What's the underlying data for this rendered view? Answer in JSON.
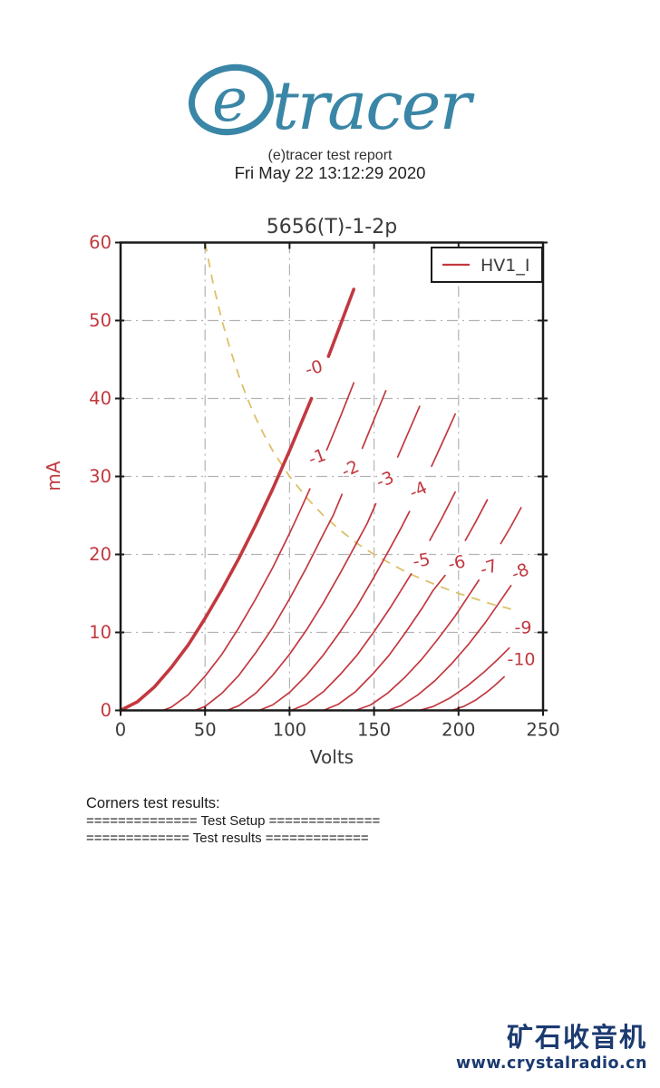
{
  "logo": {
    "mark": "e",
    "name": "tracer",
    "color": "#3a86a6"
  },
  "header": {
    "report_title": "(e)tracer test report",
    "timestamp": "Fri May 22 13:12:29 2020"
  },
  "chart_data": {
    "type": "line",
    "title": "5656(T)-1-2p",
    "xlabel": "Volts",
    "ylabel": "mA",
    "xlim": [
      0,
      250
    ],
    "ylim": [
      0,
      60
    ],
    "xticks": [
      0,
      50,
      100,
      150,
      200,
      250
    ],
    "yticks": [
      0,
      10,
      20,
      30,
      40,
      50,
      60
    ],
    "grid": true,
    "legend": {
      "label": "HV1_I",
      "position": "top-right"
    },
    "colors": {
      "curve": "#c2383f",
      "power": "#dcc06a",
      "grid": "#b3b3b3",
      "axis": "#1a1a1a",
      "title": "#3a3a3a",
      "xtick": "#3a3a3a",
      "ytick": "#c2383f"
    },
    "series": [
      {
        "name": "-0",
        "bold": true,
        "label_pos": [
          115.3,
          43.9
        ],
        "label_rot": -15,
        "segments": [
          [
            [
              0,
              0
            ],
            [
              10,
              1.1
            ],
            [
              20,
              3.0
            ],
            [
              30,
              5.5
            ],
            [
              40,
              8.4
            ],
            [
              50,
              11.8
            ],
            [
              60,
              15.5
            ],
            [
              70,
              19.5
            ],
            [
              80,
              23.8
            ],
            [
              90,
              28.4
            ],
            [
              100,
              33.3
            ],
            [
              107,
              36.9
            ],
            [
              113,
              40.0
            ]
          ],
          [
            [
              123,
              45.4
            ],
            [
              130,
              49.4
            ],
            [
              138,
              54
            ]
          ]
        ]
      },
      {
        "name": "-1",
        "bold": false,
        "label_pos": [
          117.5,
          32.5
        ],
        "label_rot": -20,
        "segments": [
          [
            [
              0,
              0
            ],
            [
              25,
              0
            ],
            [
              30,
              0.4
            ],
            [
              40,
              2.0
            ],
            [
              50,
              4.4
            ],
            [
              60,
              7.2
            ],
            [
              70,
              10.6
            ],
            [
              80,
              14.3
            ],
            [
              90,
              18.3
            ],
            [
              100,
              22.7
            ],
            [
              106,
              25.5
            ],
            [
              112,
              28.4
            ]
          ],
          [
            [
              122,
              33.4
            ],
            [
              130,
              37.6
            ],
            [
              138,
              42
            ]
          ]
        ]
      },
      {
        "name": "-2",
        "bold": false,
        "label_pos": [
          137.3,
          31.0
        ],
        "label_rot": -25,
        "segments": [
          [
            [
              0,
              0
            ],
            [
              44,
              0
            ],
            [
              50,
              0.5
            ],
            [
              60,
              2.2
            ],
            [
              70,
              4.5
            ],
            [
              80,
              7.4
            ],
            [
              90,
              10.6
            ],
            [
              100,
              14.3
            ],
            [
              110,
              18.3
            ],
            [
              120,
              22.6
            ],
            [
              126,
              25.1
            ],
            [
              131,
              27.7
            ]
          ],
          [
            [
              143,
              33.6
            ],
            [
              150,
              37.3
            ],
            [
              157,
              41
            ]
          ]
        ]
      },
      {
        "name": "-3",
        "bold": false,
        "label_pos": [
          157.7,
          29.6
        ],
        "label_rot": -22,
        "segments": [
          [
            [
              0,
              0
            ],
            [
              63,
              0
            ],
            [
              70,
              0.6
            ],
            [
              80,
              2.2
            ],
            [
              90,
              4.5
            ],
            [
              100,
              7.2
            ],
            [
              110,
              10.3
            ],
            [
              120,
              13.8
            ],
            [
              130,
              17.6
            ],
            [
              140,
              21.6
            ],
            [
              146,
              24.0
            ],
            [
              151,
              26.5
            ]
          ],
          [
            [
              164,
              32.5
            ],
            [
              170,
              35.5
            ],
            [
              177,
              39
            ]
          ]
        ]
      },
      {
        "name": "-4",
        "bold": false,
        "label_pos": [
          177.6,
          28.3
        ],
        "label_rot": -25,
        "segments": [
          [
            [
              0,
              0
            ],
            [
              82,
              0
            ],
            [
              90,
              0.7
            ],
            [
              100,
              2.3
            ],
            [
              110,
              4.5
            ],
            [
              120,
              7.1
            ],
            [
              130,
              10.1
            ],
            [
              140,
              13.4
            ],
            [
              150,
              17.1
            ],
            [
              160,
              21.0
            ],
            [
              166,
              23.4
            ],
            [
              171,
              25.5
            ]
          ],
          [
            [
              184,
              31.3
            ],
            [
              191,
              34.6
            ],
            [
              198,
              38
            ]
          ]
        ]
      },
      {
        "name": "-5",
        "bold": false,
        "label_pos": [
          178.6,
          19.2
        ],
        "label_rot": -10,
        "segments": [
          [
            [
              0,
              0
            ],
            [
              101,
              0
            ],
            [
              110,
              0.8
            ],
            [
              120,
              2.4
            ],
            [
              130,
              4.6
            ],
            [
              140,
              7.1
            ],
            [
              150,
              10.1
            ],
            [
              160,
              13.3
            ],
            [
              166,
              15.4
            ],
            [
              172,
              17.5
            ]
          ],
          [
            [
              183,
              21.8
            ],
            [
              190,
              24.6
            ],
            [
              198,
              28
            ]
          ]
        ]
      },
      {
        "name": "-6",
        "bold": false,
        "label_pos": [
          199.6,
          18.9
        ],
        "label_rot": -12,
        "segments": [
          [
            [
              0,
              0
            ],
            [
              120,
              0
            ],
            [
              129,
              0.8
            ],
            [
              139,
              2.4
            ],
            [
              149,
              4.6
            ],
            [
              159,
              7.1
            ],
            [
              169,
              10.1
            ],
            [
              179,
              13.3
            ],
            [
              185,
              15.4
            ],
            [
              192,
              17.3
            ]
          ],
          [
            [
              204,
              21.8
            ],
            [
              210,
              24.1
            ],
            [
              217,
              27
            ]
          ]
        ]
      },
      {
        "name": "-7",
        "bold": false,
        "label_pos": [
          218.9,
          18.3
        ],
        "label_rot": -18,
        "segments": [
          [
            [
              0,
              0
            ],
            [
              139,
              0
            ],
            [
              148,
              0.7
            ],
            [
              158,
              2.2
            ],
            [
              168,
              4.2
            ],
            [
              178,
              6.5
            ],
            [
              188,
              9.2
            ],
            [
              198,
              12.1
            ],
            [
              205,
              14.4
            ],
            [
              212,
              16.7
            ]
          ],
          [
            [
              225,
              21.4
            ],
            [
              231,
              23.6
            ],
            [
              237,
              26
            ]
          ]
        ]
      },
      {
        "name": "-8",
        "bold": false,
        "label_pos": [
          237.7,
          17.8
        ],
        "label_rot": -22,
        "segments": [
          [
            [
              0,
              0
            ],
            [
              158,
              0
            ],
            [
              166,
              0.6
            ],
            [
              176,
              2.0
            ],
            [
              186,
              3.8
            ],
            [
              196,
              6.0
            ],
            [
              206,
              8.5
            ],
            [
              216,
              11.3
            ],
            [
              224,
              13.8
            ],
            [
              231,
              16
            ]
          ]
        ]
      },
      {
        "name": "-9",
        "bold": false,
        "label_pos": [
          238.2,
          10.6
        ],
        "label_rot": 0,
        "segments": [
          [
            [
              0,
              0
            ],
            [
              177,
              0
            ],
            [
              185,
              0.5
            ],
            [
              195,
              1.6
            ],
            [
              205,
              3.1
            ],
            [
              215,
              4.9
            ],
            [
              223,
              6.5
            ],
            [
              230,
              8
            ]
          ]
        ]
      },
      {
        "name": "-10",
        "bold": false,
        "label_pos": [
          237.1,
          6.5
        ],
        "label_rot": 0,
        "segments": [
          [
            [
              0,
              0
            ],
            [
              196,
              0
            ],
            [
              203,
              0.5
            ],
            [
              210,
              1.3
            ],
            [
              217,
              2.4
            ],
            [
              222,
              3.3
            ],
            [
              227,
              4.3
            ]
          ]
        ]
      }
    ],
    "power_curve": {
      "name": "dissipation-limit-3W",
      "style": "dashed",
      "points": [
        [
          50,
          60
        ],
        [
          55,
          54.5
        ],
        [
          60,
          50
        ],
        [
          65,
          46.2
        ],
        [
          70,
          42.9
        ],
        [
          75,
          40
        ],
        [
          80,
          37.5
        ],
        [
          85,
          35.3
        ],
        [
          90,
          33.3
        ],
        [
          100,
          30
        ],
        [
          110,
          27.3
        ],
        [
          120,
          25
        ],
        [
          130,
          23.1
        ],
        [
          140,
          21.4
        ],
        [
          150,
          20
        ],
        [
          160,
          18.8
        ],
        [
          170,
          17.6
        ],
        [
          180,
          16.7
        ],
        [
          190,
          15.8
        ],
        [
          200,
          15
        ],
        [
          210,
          14.3
        ],
        [
          220,
          13.6
        ],
        [
          231,
          13
        ]
      ]
    }
  },
  "results": {
    "heading": "Corners test results:",
    "setup_line": "============== Test Setup ==============",
    "results_line": "============= Test results ============="
  },
  "watermark": {
    "title": "矿石收音机",
    "url": "www.crystalradio.cn",
    "color": "#1b3a70"
  }
}
